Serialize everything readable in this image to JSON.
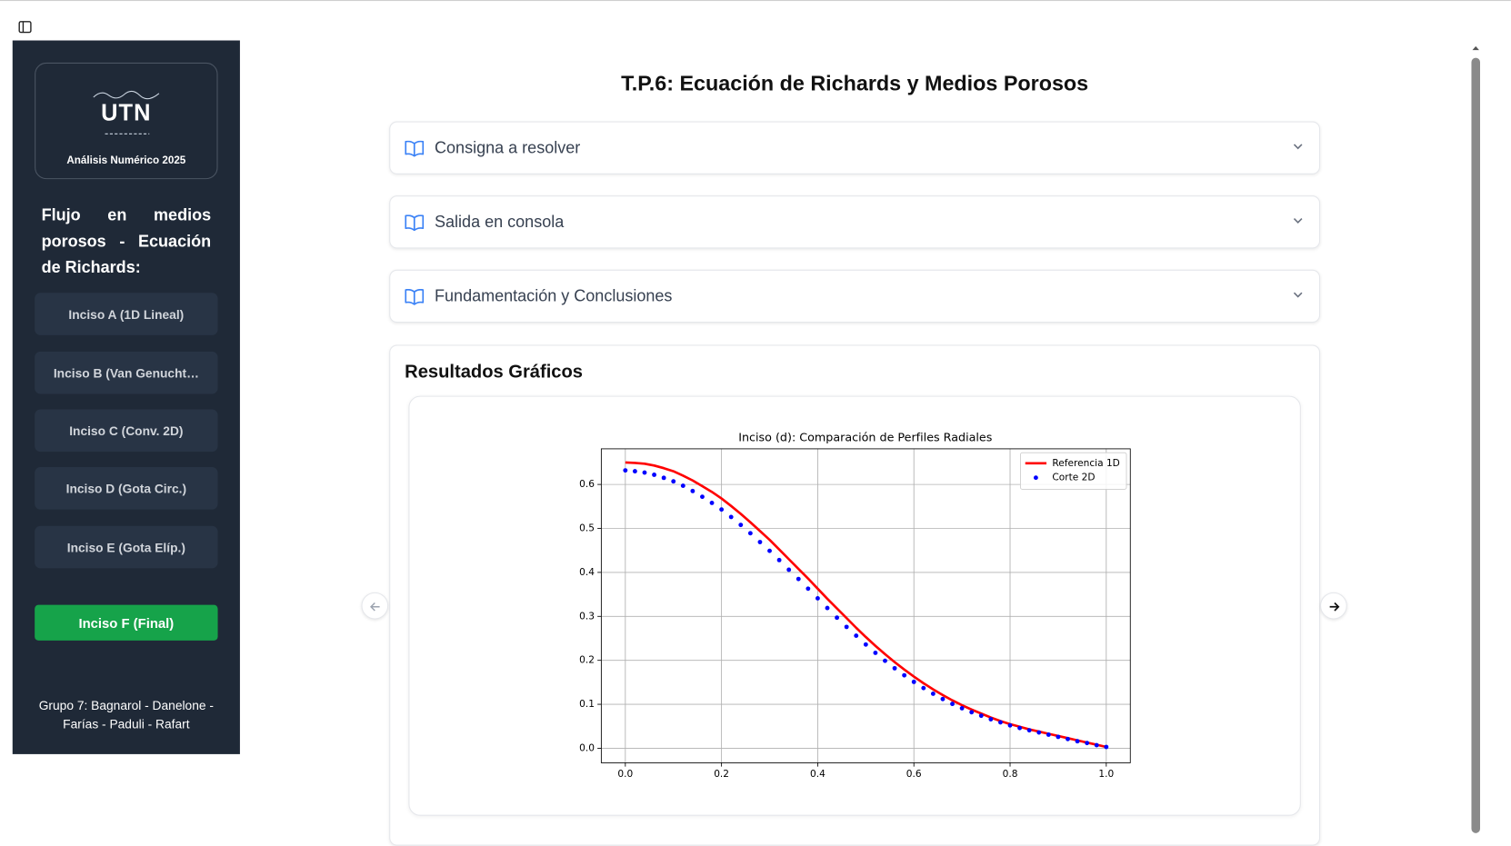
{
  "sidebar": {
    "logo_text": "UTN",
    "logo_subtitle": "Análisis Numérico 2025",
    "heading": "Flujo en medios porosos - Ecuación de Richards:",
    "nav": [
      "Inciso A (1D Lineal)",
      "Inciso B (Van Genucht…",
      "Inciso C (Conv. 2D)",
      "Inciso D (Gota Circ.)",
      "Inciso E (Gota Elíp.)"
    ],
    "active": "Inciso F (Final)",
    "footer": "Grupo 7: Bagnarol - Danelone - Farías - Paduli - Rafart"
  },
  "main": {
    "title": "T.P.6: Ecuación de Richards y Medios Porosos",
    "accordions": [
      "Consigna a resolver",
      "Salida en consola",
      "Fundamentación y Conclusiones"
    ],
    "section_title": "Resultados Gráficos"
  },
  "chart_data": {
    "type": "line",
    "title": "Inciso (d): Comparación de Perfiles Radiales",
    "x": [
      0,
      0.02,
      0.04,
      0.06,
      0.08,
      0.1,
      0.12,
      0.14,
      0.16,
      0.18,
      0.2,
      0.22,
      0.24,
      0.26,
      0.28,
      0.3,
      0.32,
      0.34,
      0.36,
      0.38,
      0.4,
      0.42,
      0.44,
      0.46,
      0.48,
      0.5,
      0.52,
      0.54,
      0.56,
      0.58,
      0.6,
      0.62,
      0.64,
      0.66,
      0.68,
      0.7,
      0.72,
      0.74,
      0.76,
      0.78,
      0.8,
      0.82,
      0.84,
      0.86,
      0.88,
      0.9,
      0.92,
      0.94,
      0.96,
      0.98,
      1.0
    ],
    "series": [
      {
        "name": "Referencia 1D",
        "color": "#ff0000",
        "kind": "line",
        "values": [
          0.65,
          0.649,
          0.647,
          0.643,
          0.637,
          0.63,
          0.62,
          0.609,
          0.596,
          0.583,
          0.568,
          0.551,
          0.533,
          0.514,
          0.494,
          0.474,
          0.452,
          0.43,
          0.408,
          0.386,
          0.363,
          0.34,
          0.318,
          0.296,
          0.274,
          0.253,
          0.233,
          0.214,
          0.196,
          0.179,
          0.163,
          0.148,
          0.134,
          0.121,
          0.109,
          0.098,
          0.088,
          0.079,
          0.07,
          0.062,
          0.055,
          0.049,
          0.043,
          0.038,
          0.033,
          0.028,
          0.023,
          0.018,
          0.013,
          0.008,
          0.003
        ]
      },
      {
        "name": "Corte 2D",
        "color": "#0000ff",
        "kind": "scatter",
        "values": [
          0.632,
          0.63,
          0.627,
          0.622,
          0.615,
          0.607,
          0.597,
          0.585,
          0.572,
          0.558,
          0.543,
          0.526,
          0.508,
          0.489,
          0.469,
          0.449,
          0.428,
          0.406,
          0.385,
          0.363,
          0.341,
          0.319,
          0.297,
          0.276,
          0.256,
          0.236,
          0.217,
          0.199,
          0.182,
          0.166,
          0.151,
          0.137,
          0.124,
          0.112,
          0.101,
          0.091,
          0.082,
          0.074,
          0.066,
          0.059,
          0.052,
          0.046,
          0.041,
          0.036,
          0.031,
          0.026,
          0.021,
          0.016,
          0.012,
          0.007,
          0.003
        ]
      }
    ],
    "xlim": [
      -0.05,
      1.05
    ],
    "ylim": [
      -0.033,
      0.681
    ],
    "xticks": [
      {
        "value": 0,
        "label": "0.0"
      },
      0.2,
      0.4,
      0.6,
      0.8,
      {
        "value": 1,
        "label": "1.0"
      }
    ],
    "yticks": [
      {
        "value": 0,
        "label": "0.0"
      },
      0.1,
      0.2,
      0.3,
      0.4,
      0.5,
      0.6
    ],
    "grid": true,
    "legend": "upper right"
  }
}
